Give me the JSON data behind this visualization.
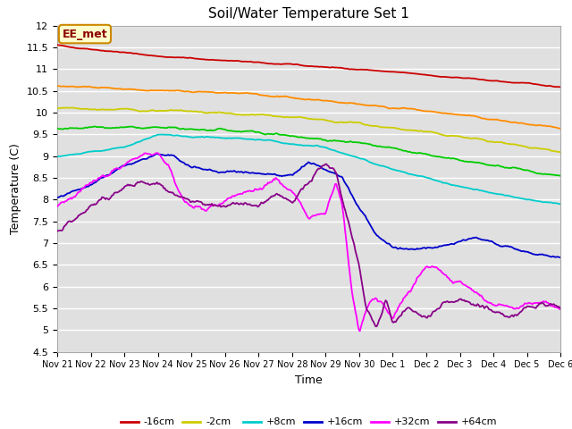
{
  "title": "Soil/Water Temperature Set 1",
  "xlabel": "Time",
  "ylabel": "Temperature (C)",
  "ylim": [
    4.5,
    12.0
  ],
  "yticks": [
    4.5,
    5.0,
    5.5,
    6.0,
    6.5,
    7.0,
    7.5,
    8.0,
    8.5,
    9.0,
    9.5,
    10.0,
    10.5,
    11.0,
    11.5,
    12.0
  ],
  "bg_color": "#e0e0e0",
  "annotation_text": "EE_met",
  "annotation_bg": "#ffffcc",
  "annotation_border": "#cc8800",
  "series_colors": {
    "-16cm": "#cc0000",
    "-8cm": "#ff8c00",
    "-2cm": "#cccc00",
    "+2cm": "#00cc00",
    "+8cm": "#00cccc",
    "+16cm": "#0000cc",
    "+32cm": "#ff00ff",
    "+64cm": "#880088"
  },
  "n_points": 450,
  "xtick_labels": [
    "Nov 21",
    "Nov 22",
    "Nov 23",
    "Nov 24",
    "Nov 25",
    "Nov 26",
    "Nov 27",
    "Nov 28",
    "Nov 29",
    "Nov 30",
    "Dec 1",
    "Dec 2",
    "Dec 3",
    "Dec 4",
    "Dec 5",
    "Dec 6"
  ]
}
